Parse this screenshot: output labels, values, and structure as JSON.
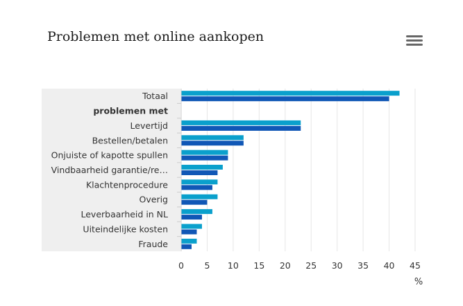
{
  "chart_data": {
    "type": "bar",
    "orientation": "horizontal",
    "title": "Problemen met online aankopen",
    "unit_label": "%",
    "categories": [
      "Totaal",
      "problemen met",
      "Levertijd",
      "Bestellen/betalen",
      "Onjuiste of kapotte spullen",
      "Vindbaarheid garantie/re…",
      "Klachtenprocedure",
      "Overig",
      "Leverbaarheid in NL",
      "Uiteindelijke kosten",
      "Fraude"
    ],
    "bold_categories": [
      "problemen met"
    ],
    "series": [
      {
        "color": "#0aa0cc",
        "values": [
          42,
          null,
          23,
          12,
          9,
          8,
          7,
          7,
          6,
          4,
          3
        ]
      },
      {
        "color": "#1057b6",
        "values": [
          40,
          null,
          23,
          12,
          9,
          7,
          6,
          5,
          4,
          3,
          2
        ]
      }
    ],
    "xlim": [
      0,
      45
    ],
    "xticks": [
      0,
      5,
      10,
      15,
      20,
      25,
      30,
      35,
      40,
      45
    ],
    "grid": true,
    "category_band_color": "#efefef"
  }
}
